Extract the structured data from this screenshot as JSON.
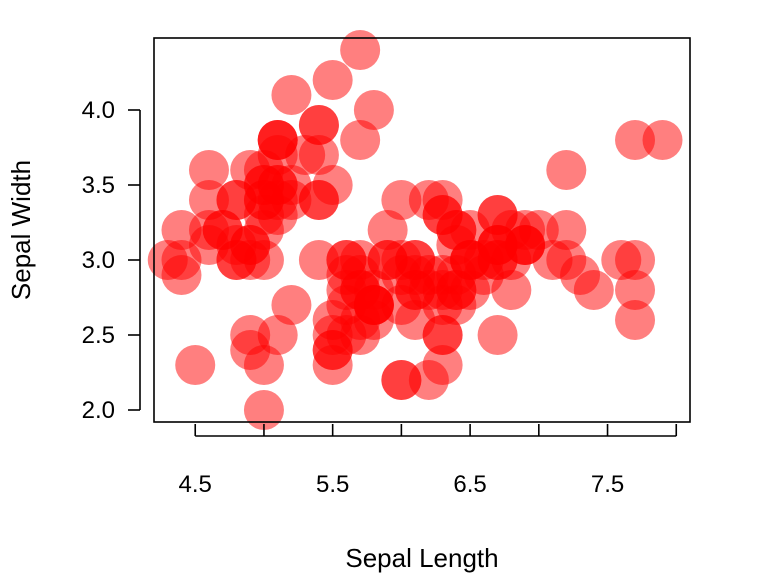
{
  "chart_data": {
    "type": "scatter",
    "title": "",
    "xlabel": "Sepal Length",
    "ylabel": "Sepal Width",
    "xlim": [
      4.2,
      8.1
    ],
    "ylim": [
      1.92,
      4.48
    ],
    "x_ticks": [
      4.5,
      5.0,
      5.5,
      6.0,
      6.5,
      7.0,
      7.5,
      8.0
    ],
    "x_tick_labels": [
      "4.5",
      "",
      "5.5",
      "",
      "6.5",
      "",
      "7.5",
      ""
    ],
    "y_ticks": [
      2.0,
      2.5,
      3.0,
      3.5,
      4.0
    ],
    "y_tick_labels": [
      "2.0",
      "2.5",
      "3.0",
      "3.5",
      "4.0"
    ],
    "grid": false,
    "legend": "none",
    "marker_color": "#ff0000",
    "marker_opacity": 0.5,
    "series": [
      {
        "x": [
          5.1,
          4.9,
          4.7,
          4.6,
          5.0,
          5.4,
          4.6,
          5.0,
          4.4,
          4.9,
          5.4,
          4.8,
          4.8,
          4.3,
          5.8,
          5.7,
          5.4,
          5.1,
          5.7,
          5.1,
          5.4,
          5.1,
          4.6,
          5.1,
          4.8,
          5.0,
          5.0,
          5.2,
          5.2,
          4.7,
          4.8,
          5.4,
          5.2,
          5.5,
          4.9,
          5.0,
          5.5,
          4.9,
          4.4,
          5.1,
          5.0,
          4.5,
          4.4,
          5.0,
          5.1,
          4.8,
          5.1,
          4.6,
          5.3,
          5.0,
          7.0,
          6.4,
          6.9,
          5.5,
          6.5,
          5.7,
          6.3,
          4.9,
          6.6,
          5.2,
          5.0,
          5.9,
          6.0,
          6.1,
          5.6,
          6.7,
          5.6,
          5.8,
          6.2,
          5.6,
          5.9,
          6.1,
          6.3,
          6.1,
          6.4,
          6.6,
          6.8,
          6.7,
          6.0,
          5.7,
          5.5,
          5.5,
          5.8,
          6.0,
          5.4,
          6.0,
          6.7,
          6.3,
          5.6,
          5.5,
          5.5,
          6.1,
          5.8,
          5.0,
          5.6,
          5.7,
          5.7,
          6.2,
          5.1,
          5.7,
          6.3,
          5.8,
          7.1,
          6.3,
          6.5,
          7.6,
          4.9,
          7.3,
          6.7,
          7.2,
          6.5,
          6.4,
          6.8,
          5.7,
          5.8,
          6.4,
          6.5,
          7.7,
          7.7,
          6.0,
          6.9,
          5.6,
          7.7,
          6.3,
          6.7,
          7.2,
          6.2,
          6.1,
          6.4,
          7.2,
          7.4,
          7.9,
          6.4,
          6.3,
          6.1,
          7.7,
          6.3,
          6.4,
          6.0,
          6.9,
          6.7,
          6.9,
          5.8,
          6.8,
          6.7,
          6.7,
          6.3,
          6.5,
          6.2,
          5.9
        ],
        "y": [
          3.5,
          3.0,
          3.2,
          3.1,
          3.6,
          3.9,
          3.4,
          3.4,
          2.9,
          3.1,
          3.7,
          3.4,
          3.0,
          3.0,
          4.0,
          4.4,
          3.9,
          3.5,
          3.8,
          3.8,
          3.4,
          3.7,
          3.6,
          3.3,
          3.4,
          3.0,
          3.4,
          3.5,
          3.4,
          3.2,
          3.1,
          3.4,
          4.1,
          4.2,
          3.1,
          3.2,
          3.5,
          3.6,
          3.0,
          3.4,
          3.5,
          2.3,
          3.2,
          3.5,
          3.8,
          3.0,
          3.8,
          3.2,
          3.7,
          3.3,
          3.2,
          3.2,
          3.1,
          2.3,
          2.8,
          2.8,
          3.3,
          2.4,
          2.9,
          2.7,
          2.0,
          3.0,
          2.2,
          2.9,
          2.9,
          3.1,
          3.0,
          2.7,
          2.2,
          2.5,
          3.2,
          2.8,
          2.5,
          2.8,
          2.9,
          3.0,
          2.8,
          3.0,
          2.9,
          2.6,
          2.4,
          2.4,
          2.7,
          2.7,
          3.0,
          3.4,
          3.1,
          2.3,
          3.0,
          2.5,
          2.6,
          3.0,
          2.6,
          2.3,
          2.7,
          3.0,
          2.9,
          2.9,
          2.5,
          2.8,
          3.3,
          2.7,
          3.0,
          2.9,
          3.0,
          3.0,
          2.5,
          2.9,
          2.5,
          3.6,
          3.2,
          2.7,
          3.0,
          2.5,
          2.8,
          3.2,
          3.0,
          3.8,
          2.6,
          2.2,
          3.2,
          2.8,
          2.8,
          2.7,
          3.3,
          3.2,
          2.8,
          3.0,
          2.8,
          3.0,
          2.8,
          3.8,
          2.8,
          2.8,
          2.6,
          3.0,
          3.4,
          3.1,
          3.0,
          3.1,
          3.1,
          3.1,
          2.7,
          3.2,
          3.3,
          3.0,
          2.5,
          3.0,
          3.4,
          3.0
        ]
      }
    ]
  }
}
